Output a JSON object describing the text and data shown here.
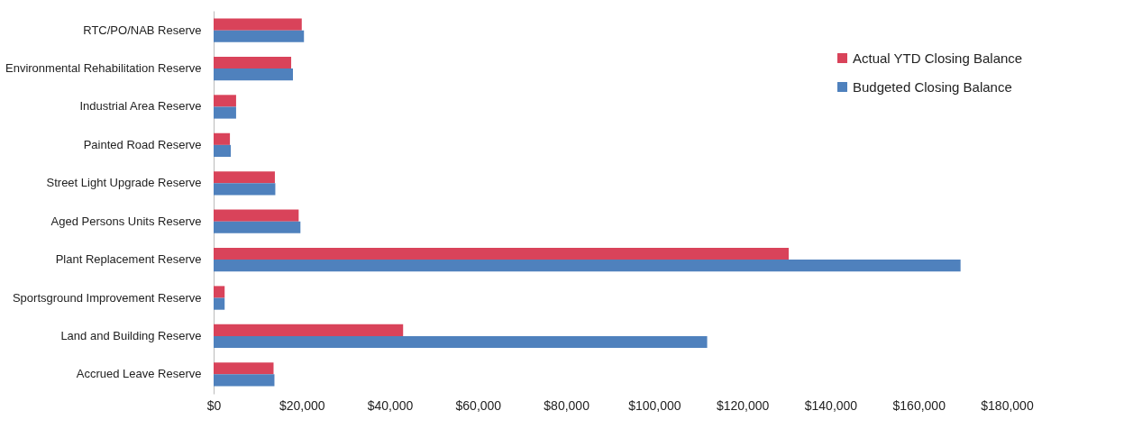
{
  "chart_data": {
    "type": "bar",
    "orientation": "horizontal",
    "categories": [
      "RTC/PO/NAB Reserve",
      "Environmental Rehabilitation Reserve",
      "Industrial Area Reserve",
      "Painted Road Reserve",
      "Street Light Upgrade Reserve",
      "Aged Persons Units Reserve",
      "Plant Replacement Reserve",
      "Sportsground Improvement Reserve",
      "Land and Building Reserve",
      "Accrued Leave Reserve"
    ],
    "series": [
      {
        "name": "Actual YTD Closing Balance",
        "color": "#d9435a",
        "values": [
          20000,
          17600,
          5100,
          3700,
          13900,
          19300,
          130500,
          2500,
          43000,
          13600
        ]
      },
      {
        "name": "Budgeted Closing Balance",
        "color": "#4f81bd",
        "values": [
          20500,
          18000,
          5100,
          3900,
          14000,
          19700,
          169500,
          2500,
          112000,
          13800
        ]
      }
    ],
    "xlim": [
      0,
      180000
    ],
    "xticks": [
      {
        "value": 0,
        "label": "$0"
      },
      {
        "value": 20000,
        "label": "$20,000"
      },
      {
        "value": 40000,
        "label": "$40,000"
      },
      {
        "value": 60000,
        "label": "$60,000"
      },
      {
        "value": 80000,
        "label": "$80,000"
      },
      {
        "value": 100000,
        "label": "$100,000"
      },
      {
        "value": 120000,
        "label": "$120,000"
      },
      {
        "value": 140000,
        "label": "$140,000"
      },
      {
        "value": 160000,
        "label": "$160,000"
      },
      {
        "value": 180000,
        "label": "$180,000"
      }
    ],
    "grid": false,
    "legend": "top right"
  }
}
